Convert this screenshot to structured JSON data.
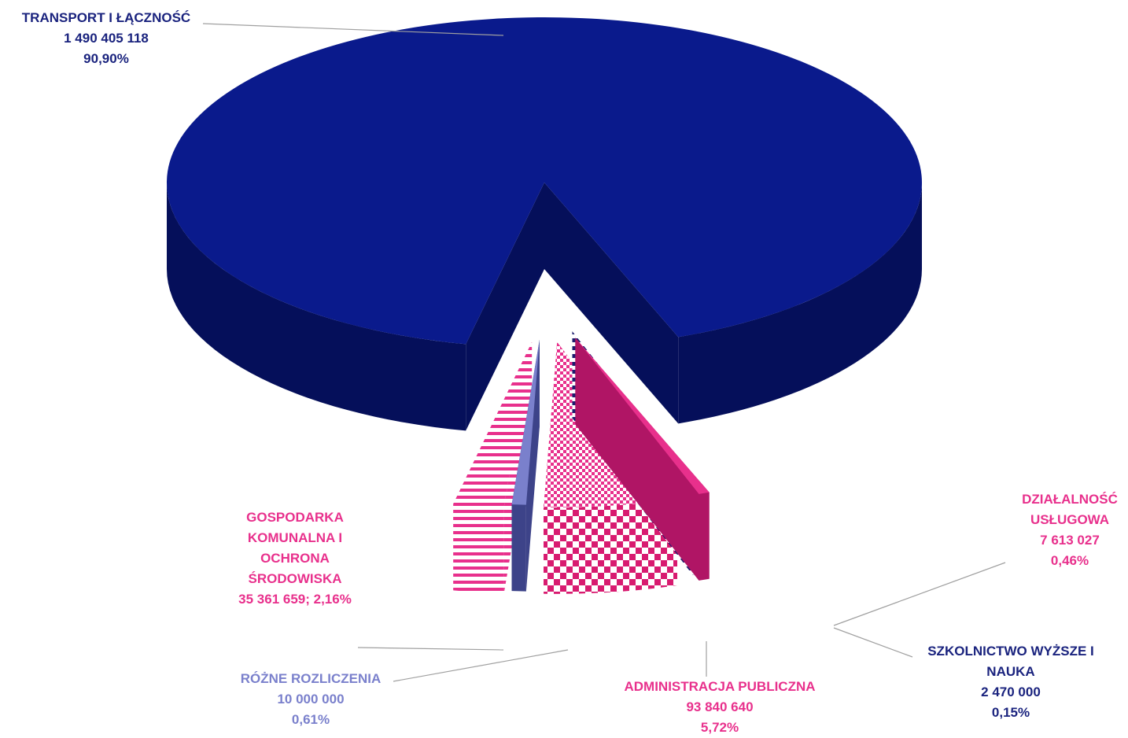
{
  "chart_data": {
    "type": "pie",
    "title": "",
    "slices": [
      {
        "name": "TRANSPORT I ŁĄCZNOŚĆ",
        "value": 1490405118,
        "value_text": "1 490 405 118",
        "percent_text": "90,90%",
        "color": "#0a1a8c"
      },
      {
        "name": "DZIAŁALNOŚĆ USŁUGOWA",
        "value": 7613027,
        "value_text": "7 613 027",
        "percent_text": "0,46%",
        "color": "#e8308c"
      },
      {
        "name": "SZKOLNICTWO WYŻSZE I NAUKA",
        "value": 2470000,
        "value_text": "2 470 000",
        "percent_text": "0,15%",
        "color": "#1c1c6e"
      },
      {
        "name": "ADMINISTRACJA PUBLICZNA",
        "value": 93840640,
        "value_text": "93 840 640",
        "percent_text": "5,72%",
        "color": "#e8308c"
      },
      {
        "name": "RÓŻNE ROZLICZENIA",
        "value": 10000000,
        "value_text": "10 000 000",
        "percent_text": "0,61%",
        "color": "#7a80cc"
      },
      {
        "name": "GOSPODARKA KOMUNALNA I OCHRONA ŚRODOWISKA",
        "value": 35361659,
        "value_text": "35 361 659; 2,16%",
        "percent_text": "2,16%",
        "color": "#e8308c"
      }
    ]
  },
  "labels": {
    "transport": {
      "lines": [
        "TRANSPORT I ŁĄCZNOŚĆ",
        "1 490 405 118",
        "90,90%"
      ],
      "color": "#1a237e"
    },
    "uslugowa": {
      "lines": [
        "DZIAŁALNOŚĆ",
        "USŁUGOWA",
        "7 613 027",
        "0,46%"
      ],
      "color": "#e8308c"
    },
    "szkolnictwo": {
      "lines": [
        "SZKOLNICTWO WYŻSZE I",
        "NAUKA",
        "2 470 000",
        "0,15%"
      ],
      "color": "#1a237e"
    },
    "administracja": {
      "lines": [
        "ADMINISTRACJA PUBLICZNA",
        "93 840 640",
        "5,72%"
      ],
      "color": "#e8308c"
    },
    "rozne": {
      "lines": [
        "RÓŻNE ROZLICZENIA",
        "10 000 000",
        "0,61%"
      ],
      "color": "#7a80cc"
    },
    "gospodarka": {
      "lines": [
        "GOSPODARKA",
        "KOMUNALNA I",
        "OCHRONA",
        "ŚRODOWISKA",
        "35 361 659; 2,16%"
      ],
      "color": "#e8308c"
    }
  }
}
